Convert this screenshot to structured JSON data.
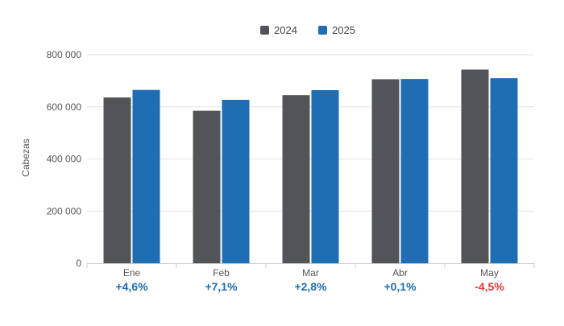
{
  "chart_data": {
    "type": "bar",
    "title": "",
    "xlabel": "",
    "ylabel": "Cabezas",
    "categories": [
      "Ene",
      "Feb",
      "Mar",
      "Abr",
      "May"
    ],
    "series": [
      {
        "name": "2024",
        "color": "#535458",
        "values": [
          636000,
          585000,
          645000,
          706000,
          743000
        ]
      },
      {
        "name": "2025",
        "color": "#1f6db3",
        "values": [
          665000,
          627000,
          664000,
          707000,
          710000
        ]
      }
    ],
    "ylim": [
      0,
      800000
    ],
    "yticks": [
      0,
      200000,
      400000,
      600000,
      800000
    ],
    "ytick_labels": [
      "0",
      "200 000",
      "400 000",
      "600 000",
      "800 000"
    ],
    "change_labels": [
      {
        "text": "+4,6%",
        "color": "#1f6db3"
      },
      {
        "text": "+7,1%",
        "color": "#1f6db3"
      },
      {
        "text": "+2,8%",
        "color": "#1f6db3"
      },
      {
        "text": "+0,1%",
        "color": "#1f6db3"
      },
      {
        "text": "-4,5%",
        "color": "#e03c3c"
      }
    ],
    "legend_position": "top-center",
    "grid": true
  }
}
